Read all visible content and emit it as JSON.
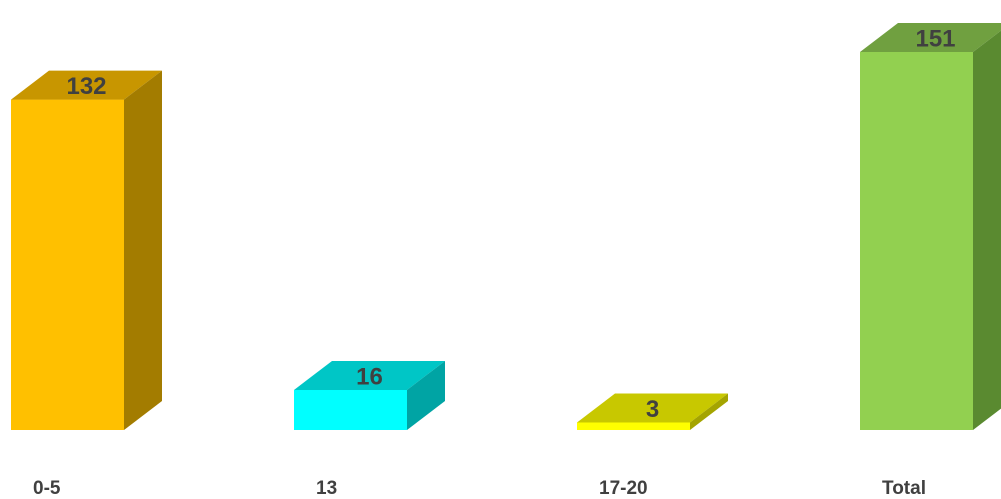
{
  "chart_data": {
    "type": "bar",
    "style": "3d",
    "title": "",
    "xlabel": "",
    "ylabel": "",
    "grid": false,
    "legend": "none",
    "ylim": [
      0,
      151
    ],
    "categories": [
      "0-5",
      "13",
      "17-20",
      "Total"
    ],
    "values": [
      132,
      16,
      3,
      151
    ],
    "data_labels": [
      "132",
      "16",
      "3",
      "151"
    ],
    "colors": [
      {
        "front": "#ffc000",
        "top": "#c89600",
        "side": "#a37c00"
      },
      {
        "front": "#00ffff",
        "top": "#00c6c6",
        "side": "#00a4a4"
      },
      {
        "front": "#ffff00",
        "top": "#c8c800",
        "side": "#a4a400"
      },
      {
        "front": "#92d050",
        "top": "#70a040",
        "side": "#5a8a30"
      }
    ]
  }
}
